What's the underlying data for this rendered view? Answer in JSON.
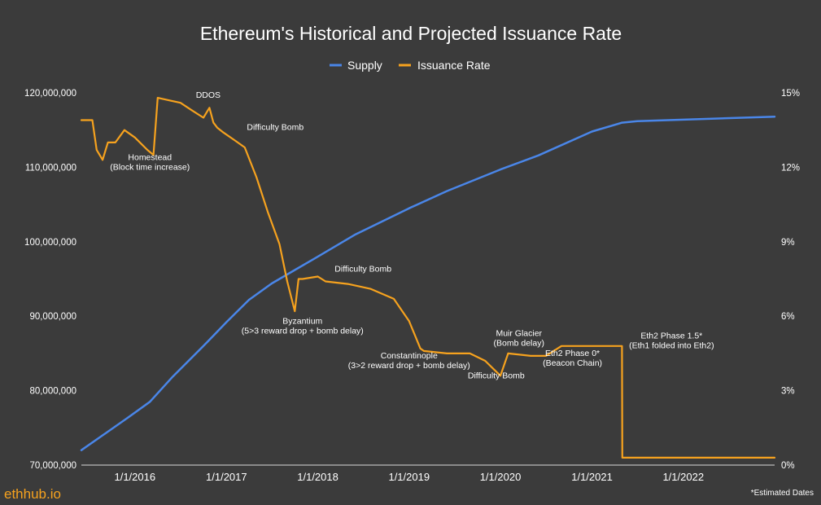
{
  "chart_data": {
    "type": "line",
    "title": "Ethereum's Historical and Projected Issuance Rate",
    "series": [
      {
        "name": "Supply",
        "color": "#4a86e8",
        "axis": "left",
        "points": [
          [
            "2015-06-01",
            72000000
          ],
          [
            "2015-12-01",
            76300000
          ],
          [
            "2016-03-01",
            78500000
          ],
          [
            "2016-06-01",
            81900000
          ],
          [
            "2016-10-01",
            86000000
          ],
          [
            "2017-01-01",
            89200000
          ],
          [
            "2017-04-01",
            92200000
          ],
          [
            "2017-07-01",
            94400000
          ],
          [
            "2017-10-01",
            96200000
          ],
          [
            "2018-01-01",
            98000000
          ],
          [
            "2018-06-01",
            101000000
          ],
          [
            "2019-01-01",
            104500000
          ],
          [
            "2019-06-01",
            106800000
          ],
          [
            "2020-01-01",
            109700000
          ],
          [
            "2020-06-01",
            111600000
          ],
          [
            "2021-01-01",
            114800000
          ],
          [
            "2021-05-01",
            116000000
          ],
          [
            "2021-07-01",
            116200000
          ],
          [
            "2023-01-01",
            116800000
          ]
        ]
      },
      {
        "name": "Issuance Rate",
        "color": "#f6a21e",
        "axis": "right",
        "points": [
          [
            "2015-06-01",
            13.9
          ],
          [
            "2015-07-15",
            13.9
          ],
          [
            "2015-08-01",
            12.7
          ],
          [
            "2015-08-25",
            12.3
          ],
          [
            "2015-09-15",
            13.0
          ],
          [
            "2015-10-15",
            13.0
          ],
          [
            "2015-11-20",
            13.5
          ],
          [
            "2016-01-01",
            13.2
          ],
          [
            "2016-02-20",
            12.7
          ],
          [
            "2016-03-15",
            12.5
          ],
          [
            "2016-04-01",
            14.8
          ],
          [
            "2016-05-15",
            14.7
          ],
          [
            "2016-07-01",
            14.6
          ],
          [
            "2016-08-15",
            14.3
          ],
          [
            "2016-10-01",
            14.0
          ],
          [
            "2016-10-25",
            14.4
          ],
          [
            "2016-11-10",
            13.8
          ],
          [
            "2016-11-25",
            13.6
          ],
          [
            "2016-12-20",
            13.4
          ],
          [
            "2017-02-01",
            13.1
          ],
          [
            "2017-03-15",
            12.8
          ],
          [
            "2017-05-01",
            11.6
          ],
          [
            "2017-06-15",
            10.2
          ],
          [
            "2017-08-01",
            8.9
          ],
          [
            "2017-09-01",
            7.4
          ],
          [
            "2017-10-01",
            6.2
          ],
          [
            "2017-10-16",
            7.5
          ],
          [
            "2017-11-01",
            7.5
          ],
          [
            "2018-01-01",
            7.6
          ],
          [
            "2018-02-01",
            7.4
          ],
          [
            "2018-05-01",
            7.3
          ],
          [
            "2018-08-01",
            7.1
          ],
          [
            "2018-11-01",
            6.7
          ],
          [
            "2019-01-01",
            5.8
          ],
          [
            "2019-02-15",
            4.7
          ],
          [
            "2019-03-01",
            4.6
          ],
          [
            "2019-06-01",
            4.5
          ],
          [
            "2019-09-01",
            4.5
          ],
          [
            "2019-11-01",
            4.2
          ],
          [
            "2020-01-01",
            3.6
          ],
          [
            "2020-02-01",
            4.5
          ],
          [
            "2020-05-01",
            4.4
          ],
          [
            "2020-07-01",
            4.4
          ],
          [
            "2020-09-01",
            4.8
          ],
          [
            "2021-05-01",
            4.8
          ],
          [
            "2021-05-02",
            0.3
          ],
          [
            "2023-01-01",
            0.3
          ]
        ]
      }
    ],
    "y_left": {
      "ticks": [
        "70,000,000",
        "80,000,000",
        "90,000,000",
        "100,000,000",
        "110,000,000",
        "120,000,000"
      ],
      "range": [
        70000000,
        120000000
      ]
    },
    "y_right": {
      "ticks": [
        "0%",
        "3%",
        "6%",
        "9%",
        "12%",
        "15%"
      ],
      "range": [
        0,
        15
      ]
    },
    "x_ticks": [
      {
        "date": "2016-01-01",
        "label": "1/1/2016"
      },
      {
        "date": "2017-01-01",
        "label": "1/1/2017"
      },
      {
        "date": "2018-01-01",
        "label": "1/1/2018"
      },
      {
        "date": "2019-01-01",
        "label": "1/1/2019"
      },
      {
        "date": "2020-01-01",
        "label": "1/1/2020"
      },
      {
        "date": "2021-01-01",
        "label": "1/1/2021"
      },
      {
        "date": "2022-01-01",
        "label": "1/1/2022"
      }
    ],
    "x_range": [
      "2015-06-01",
      "2023-01-01"
    ],
    "annotations": [
      {
        "date": "2016-03-01",
        "value": 12.3,
        "lines": [
          "Homestead",
          "(Block time increase)"
        ]
      },
      {
        "date": "2016-10-20",
        "value": 14.8,
        "lines": [
          "DDOS"
        ]
      },
      {
        "date": "2017-07-15",
        "value": 13.5,
        "lines": [
          "Difficulty Bomb"
        ]
      },
      {
        "date": "2018-07-01",
        "value": 7.8,
        "lines": [
          "Difficulty Bomb"
        ]
      },
      {
        "date": "2017-11-01",
        "value": 5.7,
        "lines": [
          "Byzantium",
          "(5>3 reward drop + bomb delay)"
        ]
      },
      {
        "date": "2019-01-01",
        "value": 4.3,
        "lines": [
          "Constantinople",
          "(3>2 reward drop + bomb delay)"
        ]
      },
      {
        "date": "2020-03-15",
        "value": 5.2,
        "lines": [
          "Muir Glacier",
          "(Bomb delay)"
        ]
      },
      {
        "date": "2019-12-15",
        "value": 3.5,
        "lines": [
          "Difficulty Bomb"
        ]
      },
      {
        "date": "2020-10-15",
        "value": 4.4,
        "lines": [
          "Eth2 Phase 0*",
          "(Beacon Chain)"
        ]
      },
      {
        "date": "2021-11-15",
        "value": 5.1,
        "lines": [
          "Eth2 Phase 1.5*",
          "(Eth1 folded into Eth2)"
        ]
      }
    ],
    "legend_position": "top-center",
    "grid": false
  },
  "footer": {
    "brand": "ethhub.io",
    "note": "*Estimated Dates"
  }
}
